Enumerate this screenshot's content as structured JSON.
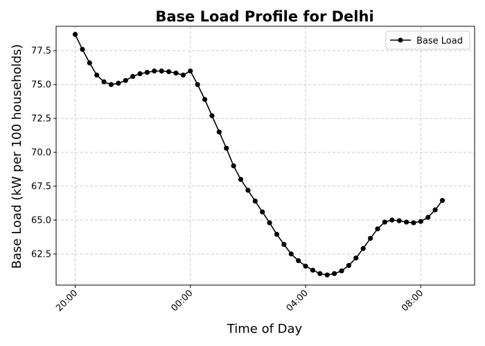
{
  "chart_data": {
    "type": "line",
    "title": "Base Load Profile for Delhi",
    "xlabel": "Time of Day",
    "ylabel": "Base Load (kW  per 100 households)",
    "x_tick_labels": [
      "20:00",
      "00:00",
      "04:00",
      "08:00"
    ],
    "y_tick_labels": [
      "62.5",
      "65.0",
      "67.5",
      "70.0",
      "72.5",
      "75.0",
      "77.5"
    ],
    "y_ticks": [
      62.5,
      65.0,
      67.5,
      70.0,
      72.5,
      75.0,
      77.5
    ],
    "ylim": [
      60.2,
      79.3
    ],
    "grid": true,
    "legend_position": "top-right",
    "series": [
      {
        "name": "Base Load",
        "color": "#000000",
        "marker": "circle",
        "x": [
          "20:00",
          "20:15",
          "20:30",
          "20:45",
          "21:00",
          "21:15",
          "21:30",
          "21:45",
          "22:00",
          "22:15",
          "22:30",
          "22:45",
          "23:00",
          "23:15",
          "23:30",
          "23:45",
          "00:00",
          "00:15",
          "00:30",
          "00:45",
          "01:00",
          "01:15",
          "01:30",
          "01:45",
          "02:00",
          "02:15",
          "02:30",
          "02:45",
          "03:00",
          "03:15",
          "03:30",
          "03:45",
          "04:00",
          "04:15",
          "04:30",
          "04:45",
          "05:00",
          "05:15",
          "05:30",
          "05:45",
          "06:00",
          "06:15",
          "06:30",
          "06:45",
          "07:00",
          "07:15",
          "07:30",
          "07:45",
          "08:00",
          "08:15",
          "08:30",
          "08:45"
        ],
        "values": [
          78.7,
          77.6,
          76.6,
          75.7,
          75.2,
          75.0,
          75.1,
          75.3,
          75.6,
          75.8,
          75.9,
          76.0,
          76.0,
          75.95,
          75.85,
          75.7,
          76.0,
          75.0,
          73.9,
          72.7,
          71.5,
          70.3,
          69.0,
          68.0,
          67.2,
          66.4,
          65.6,
          64.8,
          63.95,
          63.2,
          62.5,
          62.0,
          61.6,
          61.3,
          61.05,
          60.95,
          61.05,
          61.25,
          61.65,
          62.2,
          62.9,
          63.65,
          64.35,
          64.85,
          65.0,
          64.95,
          64.85,
          64.8,
          64.9,
          65.2,
          65.75,
          66.45
        ]
      }
    ]
  }
}
